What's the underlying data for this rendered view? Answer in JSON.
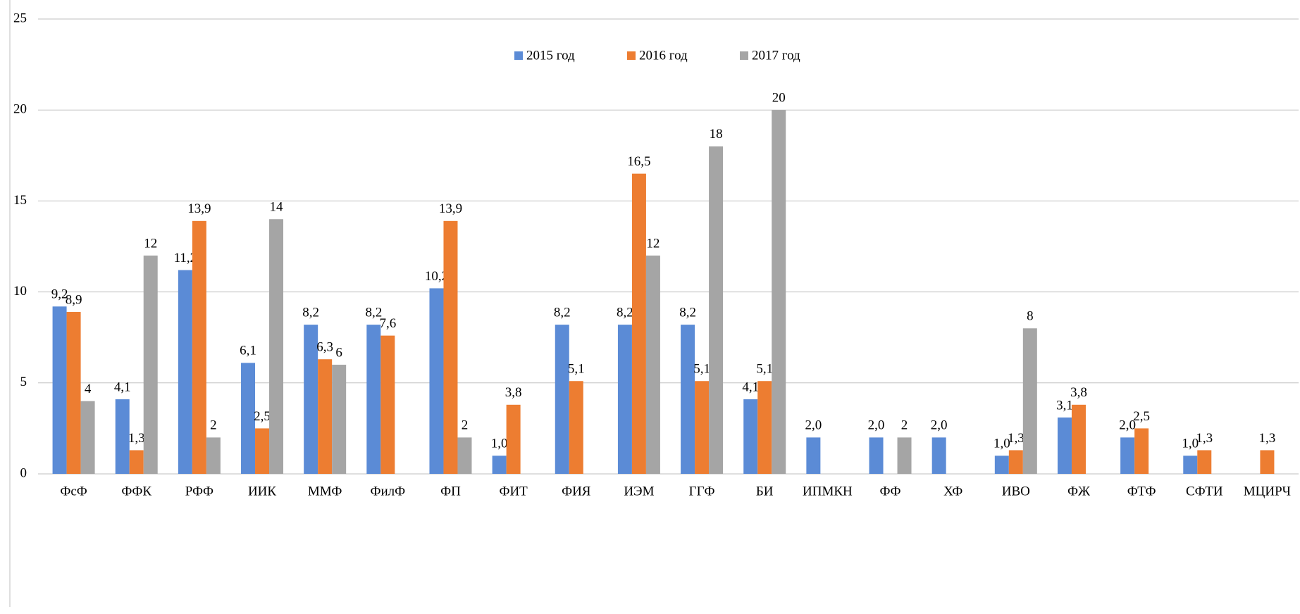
{
  "chart_data": {
    "type": "bar",
    "categories": [
      "ФсФ",
      "ФФК",
      "РФФ",
      "ИИК",
      "ММФ",
      "ФилФ",
      "ФП",
      "ФИТ",
      "ФИЯ",
      "ИЭМ",
      "ГГФ",
      "БИ",
      "ИПМКН",
      "ФФ",
      "ХФ",
      "ИВО",
      "ФЖ",
      "ФТФ",
      "СФТИ",
      "МЦИРЧ"
    ],
    "series": [
      {
        "name": "2015 год",
        "color": "#5B8BD6",
        "values": [
          9.2,
          4.1,
          11.2,
          6.1,
          8.2,
          8.2,
          10.2,
          1.0,
          8.2,
          8.2,
          8.2,
          4.1,
          2.0,
          2.0,
          2.0,
          1.0,
          3.1,
          2.0,
          1.0,
          null
        ],
        "value_labels": [
          "9,2",
          "4,1",
          "11,2",
          "6,1",
          "8,2",
          "8,2",
          "10,2",
          "1,0",
          "8,2",
          "8,2",
          "8,2",
          "4,1",
          "2,0",
          "2,0",
          "2,0",
          "1,0",
          "3,1",
          "2,0",
          "1,0",
          null
        ]
      },
      {
        "name": "2016 год",
        "color": "#ED7D31",
        "values": [
          8.9,
          1.3,
          13.9,
          2.5,
          6.3,
          7.6,
          13.9,
          3.8,
          5.1,
          16.5,
          5.1,
          5.1,
          null,
          null,
          null,
          1.3,
          3.8,
          2.5,
          1.3,
          1.3
        ],
        "value_labels": [
          "8,9",
          "1,3",
          "13,9",
          "2,5",
          "6,3",
          "7,6",
          "13,9",
          "3,8",
          "5,1",
          "16,5",
          "5,1",
          "5,1",
          null,
          null,
          null,
          "1,3",
          "3,8",
          "2,5",
          "1,3",
          "1,3"
        ]
      },
      {
        "name": "2017 год",
        "color": "#A5A5A5",
        "values": [
          4,
          12,
          2,
          14,
          6,
          null,
          2,
          null,
          null,
          12,
          18,
          20,
          null,
          2,
          null,
          8,
          null,
          null,
          null,
          null
        ]
      }
    ],
    "ylim": [
      0,
      25
    ],
    "yticks": [
      0,
      5,
      10,
      15,
      20,
      25
    ],
    "grid": true,
    "legend": "top"
  }
}
